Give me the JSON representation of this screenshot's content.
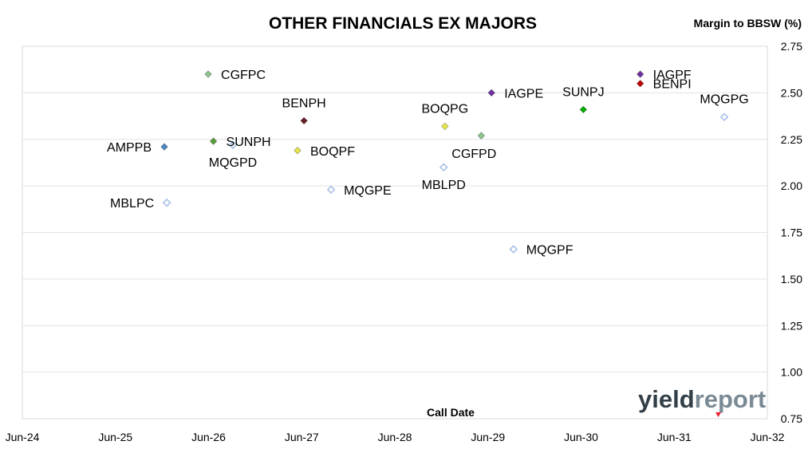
{
  "chart_data": {
    "type": "scatter",
    "title": "OTHER FINANCIALS EX MAJORS",
    "xlabel": "Call Date",
    "ylabel": "Margin to BBSW (%)",
    "ylim": [
      0.75,
      2.75
    ],
    "y_ticks": [
      "2.75",
      "2.50",
      "2.25",
      "2.00",
      "1.75",
      "1.50",
      "1.25",
      "1.00",
      "0.75"
    ],
    "x_ticks": [
      "Jun-24",
      "Jun-25",
      "Jun-26",
      "Jun-27",
      "Jun-28",
      "Jun-29",
      "Jun-30",
      "Jun-31",
      "Jun-32"
    ],
    "xlim": [
      "2024-06",
      "2032-06"
    ],
    "y_axis_side": "right",
    "grid": "horizontal",
    "legend": "none",
    "points": [
      {
        "label": "CGFPC",
        "x": "2026-05-30",
        "y": 2.6,
        "color": "#8dc58d",
        "filled": true,
        "label_pos": "right"
      },
      {
        "label": "AMPPB",
        "x": "2025-12-10",
        "y": 2.21,
        "color": "#4f86c6",
        "filled": true,
        "label_pos": "left"
      },
      {
        "label": "SUNPH",
        "x": "2026-06-20",
        "y": 2.24,
        "color": "#5a9e3a",
        "filled": true,
        "label_pos": "right"
      },
      {
        "label": "MQGPD",
        "x": "2026-09-05",
        "y": 2.22,
        "color": "#a9c1e6",
        "filled": false,
        "label_pos": "below"
      },
      {
        "label": "MBLPC",
        "x": "2025-12-20",
        "y": 1.91,
        "color": "#a9c1e6",
        "filled": false,
        "label_pos": "left"
      },
      {
        "label": "BENPH",
        "x": "2027-06-10",
        "y": 2.35,
        "color": "#6b1e24",
        "filled": true,
        "label_pos": "above"
      },
      {
        "label": "BOQPF",
        "x": "2027-05-15",
        "y": 2.19,
        "color": "#e8e84a",
        "filled": true,
        "label_pos": "right"
      },
      {
        "label": "MQGPE",
        "x": "2027-09-25",
        "y": 1.98,
        "color": "#a9c1e6",
        "filled": false,
        "label_pos": "right"
      },
      {
        "label": "BOQPG",
        "x": "2028-12-15",
        "y": 2.32,
        "color": "#e8e84a",
        "filled": true,
        "label_pos": "above"
      },
      {
        "label": "MBLPD",
        "x": "2028-12-10",
        "y": 2.1,
        "color": "#a9c1e6",
        "filled": false,
        "label_pos": "below"
      },
      {
        "label": "CGFPD",
        "x": "2029-05-05",
        "y": 2.27,
        "color": "#8dc58d",
        "filled": true,
        "label_pos": "below-right"
      },
      {
        "label": "IAGPE",
        "x": "2029-06-15",
        "y": 2.5,
        "color": "#7030a0",
        "filled": true,
        "label_pos": "right"
      },
      {
        "label": "MQGPF",
        "x": "2029-09-10",
        "y": 1.66,
        "color": "#a9c1e6",
        "filled": false,
        "label_pos": "right"
      },
      {
        "label": "SUNPJ",
        "x": "2030-06-10",
        "y": 2.41,
        "color": "#00b000",
        "filled": true,
        "label_pos": "above"
      },
      {
        "label": "IAGPF",
        "x": "2031-01-20",
        "y": 2.6,
        "color": "#7030a0",
        "filled": true,
        "label_pos": "right"
      },
      {
        "label": "BENPI",
        "x": "2031-01-20",
        "y": 2.55,
        "color": "#c00000",
        "filled": true,
        "label_pos": "right"
      },
      {
        "label": "MQGPG",
        "x": "2031-12-15",
        "y": 2.37,
        "color": "#a9c1e6",
        "filled": false,
        "label_pos": "above"
      }
    ]
  },
  "watermark": {
    "logo_part1": "yield",
    "logo_part2": "report"
  }
}
